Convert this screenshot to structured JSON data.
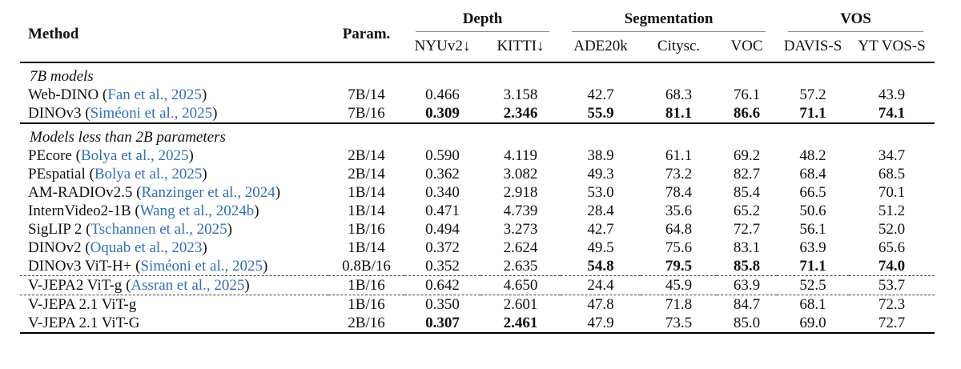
{
  "colors": {
    "citation_blue": "#326eb9",
    "rule_black": "#000000",
    "cmidrule_gray": "#8a8a8a",
    "text": "#111111",
    "background": "#ffffff"
  },
  "table": {
    "headers": {
      "method": "Method",
      "param": "Param."
    },
    "groups": [
      {
        "label": "Depth",
        "colspan": 2
      },
      {
        "label": "Segmentation",
        "colspan": 3
      },
      {
        "label": "VOS",
        "colspan": 2
      }
    ],
    "subheaders": [
      "NYUv2↓",
      "KITTI↓",
      "ADE20k",
      "Citysc.",
      "VOC",
      "DAVIS-S",
      "YT VOS-S"
    ],
    "sections": [
      {
        "label": "7B models",
        "rows": [
          {
            "name": "Web-DINO",
            "cite": "Fan et al., 2025",
            "param": "7B/14",
            "values": [
              "0.466",
              "3.158",
              "42.7",
              "68.3",
              "76.1",
              "57.2",
              "43.9"
            ],
            "bold": [
              0,
              0,
              0,
              0,
              0,
              0,
              0
            ],
            "dashed_top": false
          },
          {
            "name": "DINOv3",
            "cite": "Siméoni et al., 2025",
            "param": "7B/16",
            "values": [
              "0.309",
              "2.346",
              "55.9",
              "81.1",
              "86.6",
              "71.1",
              "74.1"
            ],
            "bold": [
              1,
              1,
              1,
              1,
              1,
              1,
              1
            ],
            "dashed_top": false
          }
        ]
      },
      {
        "label": "Models less than 2B parameters",
        "rows": [
          {
            "name": "PEcore",
            "cite": "Bolya et al., 2025",
            "param": "2B/14",
            "values": [
              "0.590",
              "4.119",
              "38.9",
              "61.1",
              "69.2",
              "48.2",
              "34.7"
            ],
            "bold": [
              0,
              0,
              0,
              0,
              0,
              0,
              0
            ],
            "dashed_top": false
          },
          {
            "name": "PEspatial",
            "cite": "Bolya et al., 2025",
            "param": "2B/14",
            "values": [
              "0.362",
              "3.082",
              "49.3",
              "73.2",
              "82.7",
              "68.4",
              "68.5"
            ],
            "bold": [
              0,
              0,
              0,
              0,
              0,
              0,
              0
            ],
            "dashed_top": false
          },
          {
            "name": "AM-RADIOv2.5",
            "cite": "Ranzinger et al., 2024",
            "param": "1B/14",
            "values": [
              "0.340",
              "2.918",
              "53.0",
              "78.4",
              "85.4",
              "66.5",
              "70.1"
            ],
            "bold": [
              0,
              0,
              0,
              0,
              0,
              0,
              0
            ],
            "dashed_top": false
          },
          {
            "name": "InternVideo2-1B",
            "cite": "Wang et al., 2024b",
            "param": "1B/14",
            "values": [
              "0.471",
              "4.739",
              "28.4",
              "35.6",
              "65.2",
              "50.6",
              "51.2"
            ],
            "bold": [
              0,
              0,
              0,
              0,
              0,
              0,
              0
            ],
            "dashed_top": false
          },
          {
            "name": "SigLIP 2",
            "cite": "Tschannen et al., 2025",
            "param": "1B/16",
            "values": [
              "0.494",
              "3.273",
              "42.7",
              "64.8",
              "72.7",
              "56.1",
              "52.0"
            ],
            "bold": [
              0,
              0,
              0,
              0,
              0,
              0,
              0
            ],
            "dashed_top": false
          },
          {
            "name": "DINOv2",
            "cite": "Oquab et al., 2023",
            "param": "1B/14",
            "values": [
              "0.372",
              "2.624",
              "49.5",
              "75.6",
              "83.1",
              "63.9",
              "65.6"
            ],
            "bold": [
              0,
              0,
              0,
              0,
              0,
              0,
              0
            ],
            "dashed_top": false
          },
          {
            "name": "DINOv3 ViT-H+",
            "cite": "Siméoni et al., 2025",
            "param": "0.8B/16",
            "values": [
              "0.352",
              "2.635",
              "54.8",
              "79.5",
              "85.8",
              "71.1",
              "74.0"
            ],
            "bold": [
              0,
              0,
              1,
              1,
              1,
              1,
              1
            ],
            "dashed_top": false
          },
          {
            "name": "V-JEPA2 ViT-g",
            "cite": "Assran et al., 2025",
            "param": "1B/16",
            "values": [
              "0.642",
              "4.650",
              "24.4",
              "45.9",
              "63.9",
              "52.5",
              "53.7"
            ],
            "bold": [
              0,
              0,
              0,
              0,
              0,
              0,
              0
            ],
            "dashed_top": true
          },
          {
            "name": "V-JEPA 2.1 ViT-g",
            "cite": null,
            "param": "1B/16",
            "values": [
              "0.350",
              "2.601",
              "47.8",
              "71.8",
              "84.7",
              "68.1",
              "72.3"
            ],
            "bold": [
              0,
              0,
              0,
              0,
              0,
              0,
              0
            ],
            "dashed_top": true
          },
          {
            "name": "V-JEPA 2.1 ViT-G",
            "cite": null,
            "param": "2B/16",
            "values": [
              "0.307",
              "2.461",
              "47.9",
              "73.5",
              "85.0",
              "69.0",
              "72.7"
            ],
            "bold": [
              1,
              1,
              0,
              0,
              0,
              0,
              0
            ],
            "dashed_top": false
          }
        ]
      }
    ]
  }
}
